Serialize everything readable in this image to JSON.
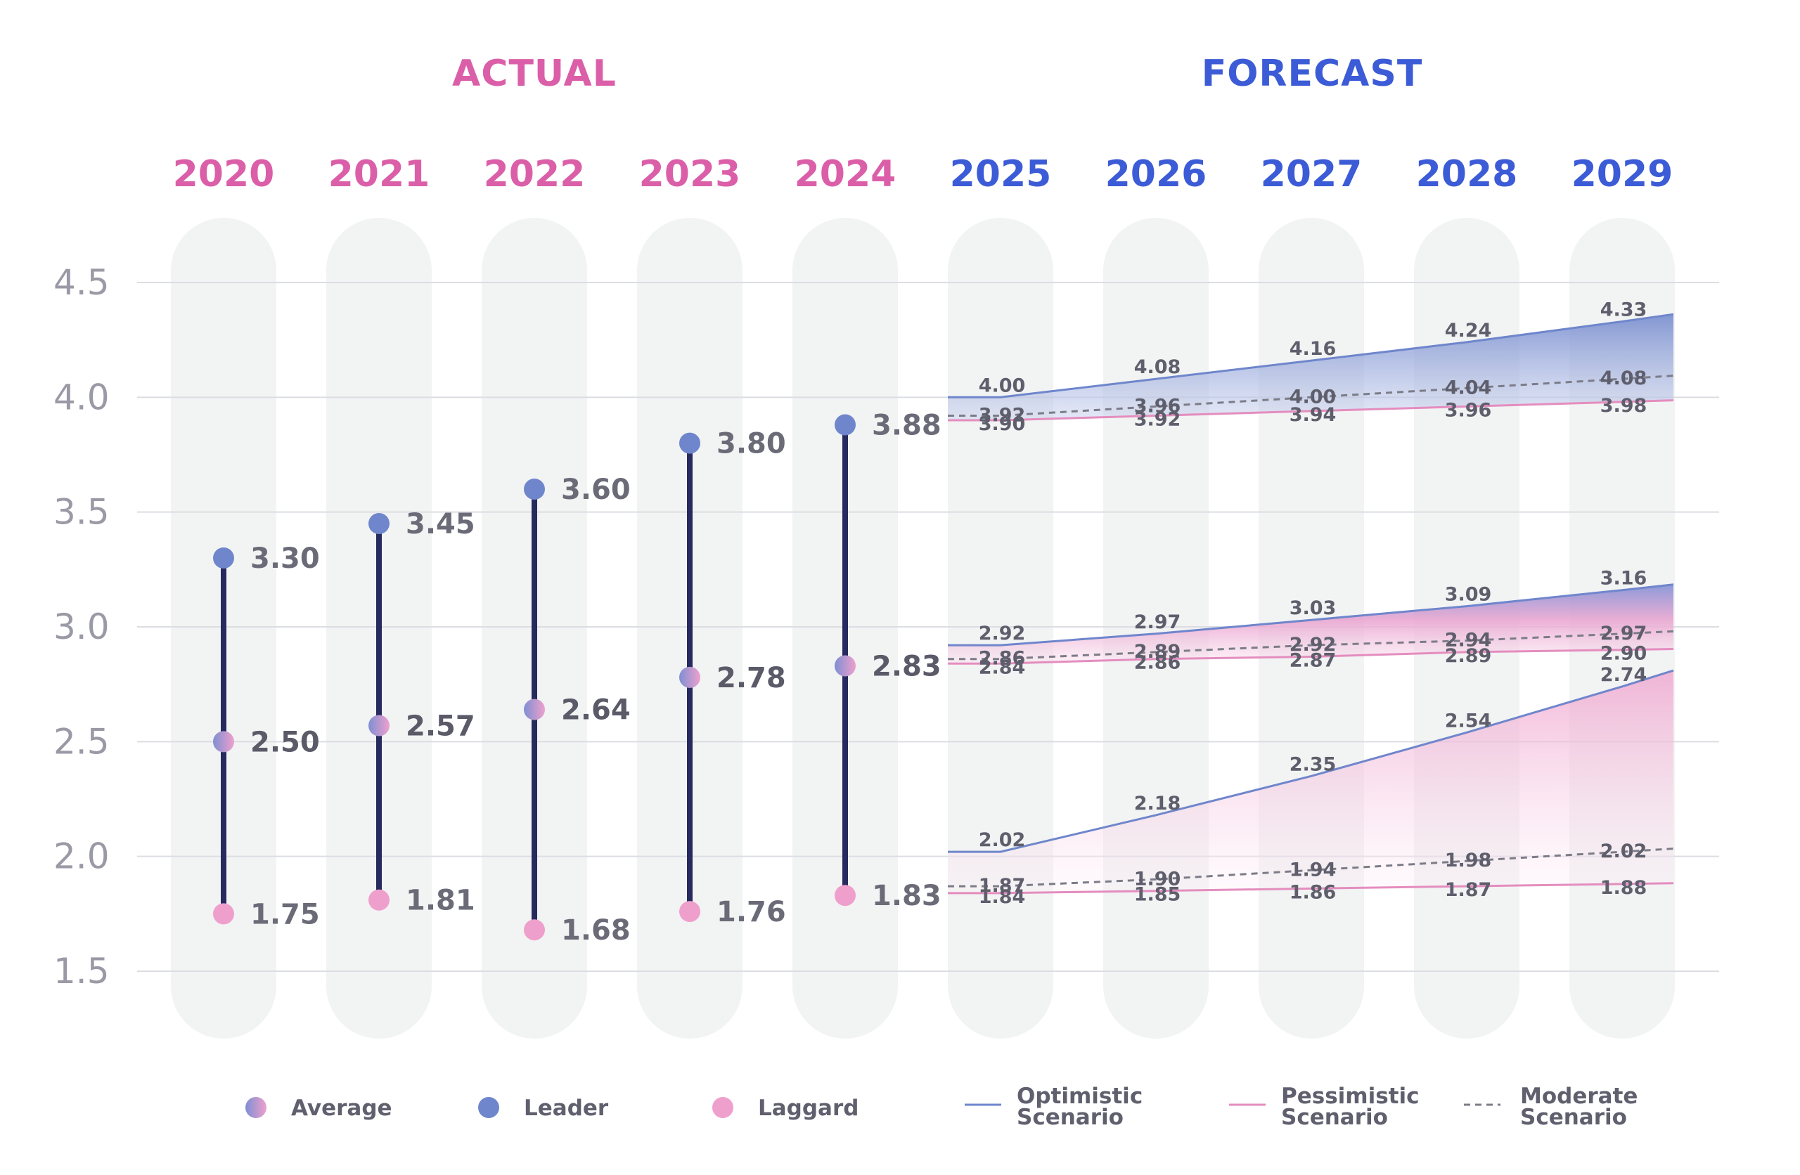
{
  "sections": {
    "actual": "ACTUAL",
    "forecast": "FORECAST"
  },
  "colors": {
    "actual": "#db5fa8",
    "forecast": "#3c5bd6",
    "leader": "#6f86cc",
    "laggard": "#ef9fcc",
    "stem": "#262a5e",
    "grid": "#dcdde3",
    "pill": "#f2f3f3",
    "axis_text": "#9a9aa6",
    "label_text": "#6b6b78"
  },
  "chart_data": {
    "type": "line",
    "ylim": [
      1.5,
      4.5
    ],
    "yticks": [
      "1.5",
      "2.0",
      "2.5",
      "3.0",
      "3.5",
      "4.0",
      "4.5"
    ],
    "ytick_values": [
      1.5,
      2.0,
      2.5,
      3.0,
      3.5,
      4.0,
      4.5
    ],
    "actual": {
      "years": [
        "2020",
        "2021",
        "2022",
        "2023",
        "2024"
      ],
      "leader": [
        3.3,
        3.45,
        3.6,
        3.8,
        3.88
      ],
      "leader_labels": [
        "3.30",
        "3.45",
        "3.60",
        "3.80",
        "3.88"
      ],
      "average": [
        2.5,
        2.57,
        2.64,
        2.78,
        2.83
      ],
      "average_labels": [
        "2.50",
        "2.57",
        "2.64",
        "2.78",
        "2.83"
      ],
      "laggard": [
        1.75,
        1.81,
        1.68,
        1.76,
        1.83
      ],
      "laggard_labels": [
        "1.75",
        "1.81",
        "1.68",
        "1.76",
        "1.83"
      ]
    },
    "forecast": {
      "years": [
        "2025",
        "2026",
        "2027",
        "2028",
        "2029"
      ],
      "groups": [
        {
          "name": "Leader",
          "optimistic": [
            4.0,
            4.08,
            4.16,
            4.24,
            4.33
          ],
          "optimistic_labels": [
            "4.00",
            "4.08",
            "4.16",
            "4.24",
            "4.33"
          ],
          "moderate": [
            3.92,
            3.96,
            4.0,
            4.04,
            4.08
          ],
          "moderate_labels": [
            "3.92",
            "3.96",
            "4.00",
            "4.04",
            "4.08"
          ],
          "pessimistic": [
            3.9,
            3.92,
            3.94,
            3.96,
            3.98
          ],
          "pessimistic_labels": [
            "3.90",
            "3.92",
            "3.94",
            "3.96",
            "3.98"
          ]
        },
        {
          "name": "Average",
          "optimistic": [
            2.92,
            2.97,
            3.03,
            3.09,
            3.16
          ],
          "optimistic_labels": [
            "2.92",
            "2.97",
            "3.03",
            "3.09",
            "3.16"
          ],
          "moderate": [
            2.86,
            2.89,
            2.92,
            2.94,
            2.97
          ],
          "moderate_labels": [
            "2.86",
            "2.89",
            "2.92",
            "2.94",
            "2.97"
          ],
          "pessimistic": [
            2.84,
            2.86,
            2.87,
            2.89,
            2.9
          ],
          "pessimistic_labels": [
            "2.84",
            "2.86",
            "2.87",
            "2.89",
            "2.90"
          ]
        },
        {
          "name": "Laggard",
          "optimistic": [
            2.02,
            2.18,
            2.35,
            2.54,
            2.74
          ],
          "optimistic_labels": [
            "2.02",
            "2.18",
            "2.35",
            "2.54",
            "2.74"
          ],
          "moderate": [
            1.87,
            1.9,
            1.94,
            1.98,
            2.02
          ],
          "moderate_labels": [
            "1.87",
            "1.90",
            "1.94",
            "1.98",
            "2.02"
          ],
          "pessimistic": [
            1.84,
            1.85,
            1.86,
            1.87,
            1.88
          ],
          "pessimistic_labels": [
            "1.84",
            "1.85",
            "1.86",
            "1.87",
            "1.88"
          ]
        }
      ]
    },
    "legend": {
      "average": "Average",
      "leader": "Leader",
      "laggard": "Laggard",
      "optimistic": [
        "Optimistic",
        "Scenario"
      ],
      "pessimistic": [
        "Pessimistic",
        "Scenario"
      ],
      "moderate": [
        "Moderate",
        "Scenario"
      ]
    }
  }
}
